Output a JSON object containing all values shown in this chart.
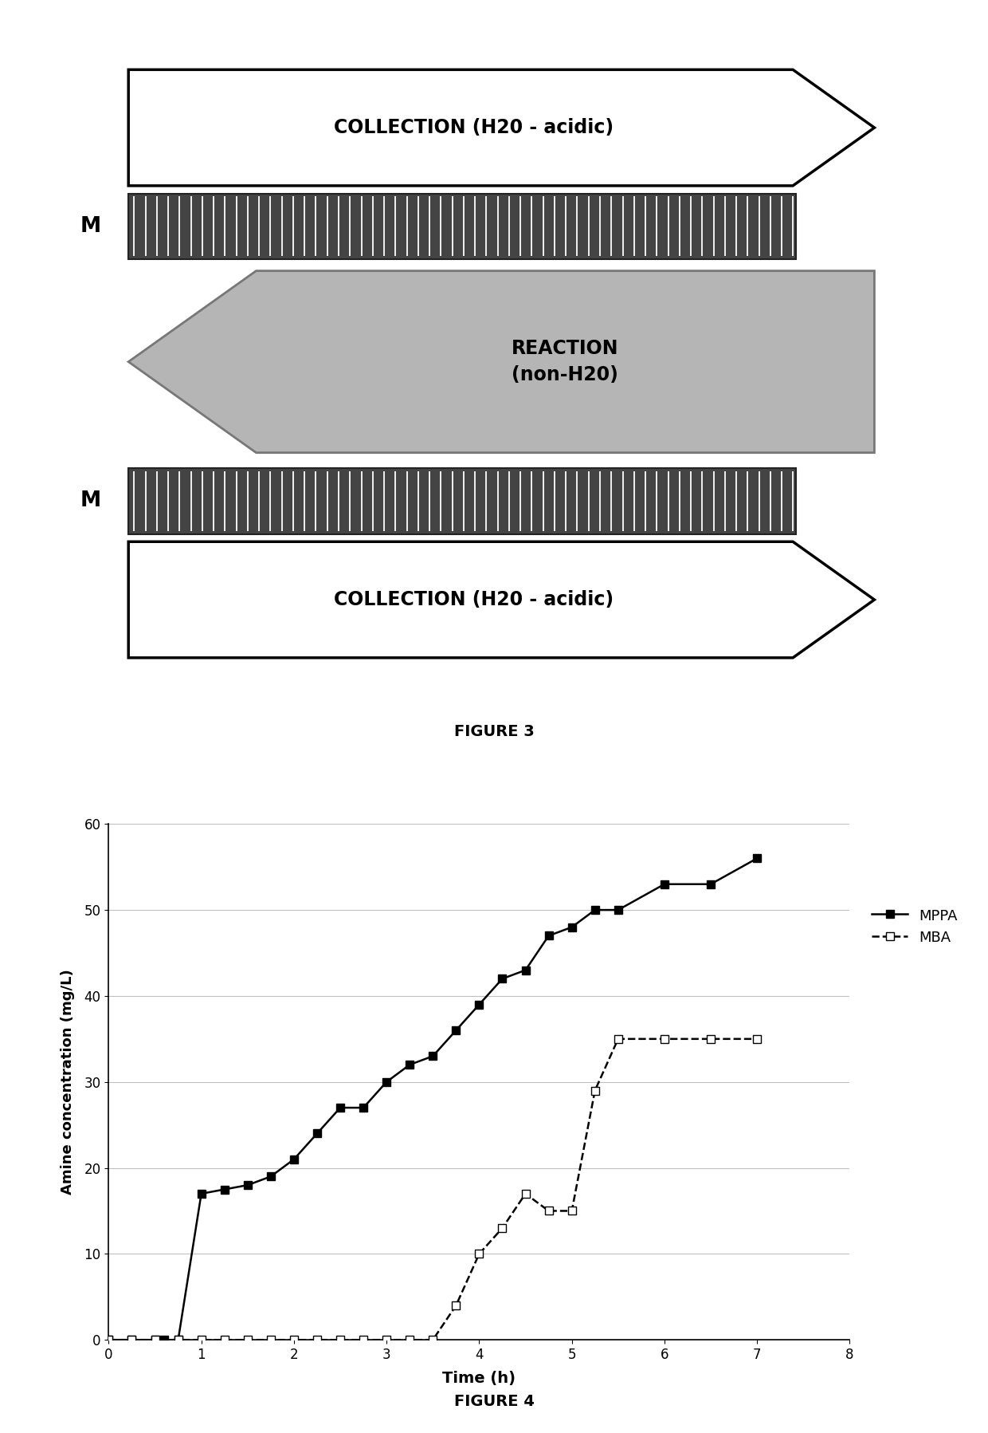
{
  "fig3": {
    "collection_text": "COLLECTION (H20 - acidic)",
    "reaction_text": "REACTION\n(non-H20)",
    "membrane_label": "M",
    "figure_label": "FIGURE 3"
  },
  "fig4": {
    "mppa_x": [
      0,
      0.25,
      0.5,
      0.6,
      0.75,
      1.0,
      1.25,
      1.5,
      1.75,
      2.0,
      2.25,
      2.5,
      2.75,
      3.0,
      3.25,
      3.5,
      3.75,
      4.0,
      4.25,
      4.5,
      4.75,
      5.0,
      5.25,
      5.5,
      6.0,
      6.5,
      7.0
    ],
    "mppa_y": [
      0,
      0,
      0,
      0,
      0,
      17,
      17.5,
      18,
      19,
      21,
      24,
      27,
      27,
      30,
      32,
      33,
      36,
      39,
      42,
      43,
      47,
      48,
      50,
      50,
      53,
      53,
      56
    ],
    "mba_x": [
      0,
      0.25,
      0.5,
      0.75,
      1.0,
      1.25,
      1.5,
      1.75,
      2.0,
      2.25,
      2.5,
      2.75,
      3.0,
      3.25,
      3.5,
      3.75,
      4.0,
      4.25,
      4.5,
      4.75,
      5.0,
      5.25,
      5.5,
      6.0,
      6.5,
      7.0
    ],
    "mba_y": [
      0,
      0,
      0,
      0,
      0,
      0,
      0,
      0,
      0,
      0,
      0,
      0,
      0,
      0,
      0,
      4,
      10,
      13,
      17,
      15,
      15,
      29,
      35,
      35,
      35,
      35
    ],
    "xlabel": "Time (h)",
    "ylabel": "Amine concentration (mg/L)",
    "xlim": [
      0,
      8
    ],
    "ylim": [
      0,
      60
    ],
    "xticks": [
      0,
      1,
      2,
      3,
      4,
      5,
      6,
      7,
      8
    ],
    "yticks": [
      0,
      10,
      20,
      30,
      40,
      50,
      60
    ],
    "figure_label": "FIGURE 4",
    "legend_mppa": "MPPA",
    "legend_mba": "MBA",
    "line_color": "#000000",
    "grid_color": "#c0c0c0"
  }
}
